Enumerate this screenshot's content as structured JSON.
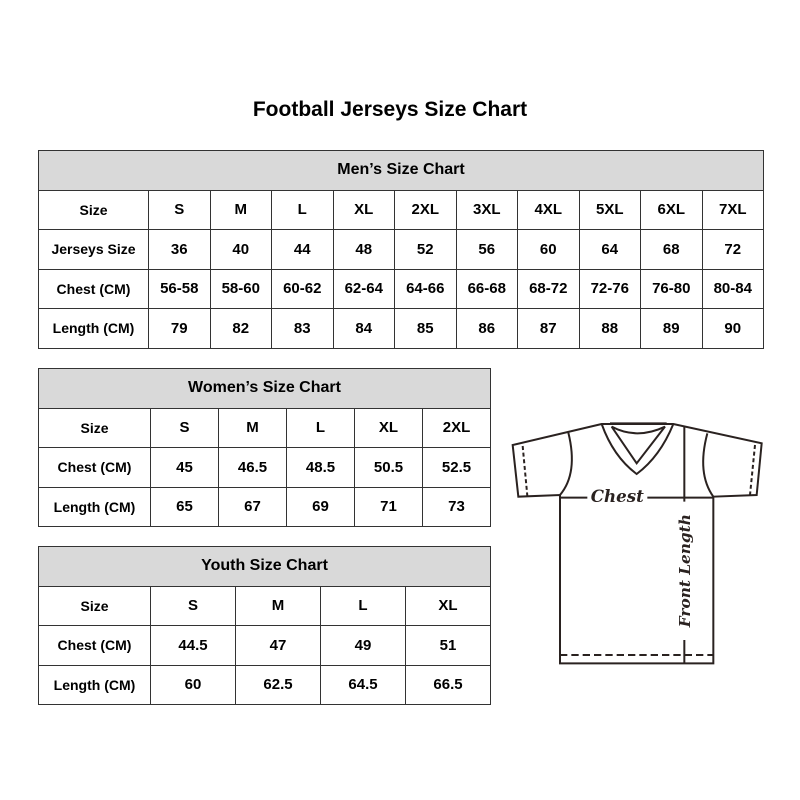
{
  "title": "Football Jerseys Size Chart",
  "men": {
    "heading": "Men’s Size Chart",
    "rows": [
      [
        "Size",
        "S",
        "M",
        "L",
        "XL",
        "2XL",
        "3XL",
        "4XL",
        "5XL",
        "6XL",
        "7XL"
      ],
      [
        "Jerseys Size",
        "36",
        "40",
        "44",
        "48",
        "52",
        "56",
        "60",
        "64",
        "68",
        "72"
      ],
      [
        "Chest (CM)",
        "56-58",
        "58-60",
        "60-62",
        "62-64",
        "64-66",
        "66-68",
        "68-72",
        "72-76",
        "76-80",
        "80-84"
      ],
      [
        "Length (CM)",
        "79",
        "82",
        "83",
        "84",
        "85",
        "86",
        "87",
        "88",
        "89",
        "90"
      ]
    ]
  },
  "women": {
    "heading": "Women’s Size Chart",
    "rows": [
      [
        "Size",
        "S",
        "M",
        "L",
        "XL",
        "2XL"
      ],
      [
        "Chest (CM)",
        "45",
        "46.5",
        "48.5",
        "50.5",
        "52.5"
      ],
      [
        "Length (CM)",
        "65",
        "67",
        "69",
        "71",
        "73"
      ]
    ]
  },
  "youth": {
    "heading": "Youth Size Chart",
    "rows": [
      [
        "Size",
        "S",
        "M",
        "L",
        "XL"
      ],
      [
        "Chest (CM)",
        "44.5",
        "47",
        "49",
        "51"
      ],
      [
        "Length (CM)",
        "60",
        "62.5",
        "64.5",
        "66.5"
      ]
    ]
  },
  "diagram": {
    "chest_label": "Chest",
    "length_label": "Front Length"
  }
}
